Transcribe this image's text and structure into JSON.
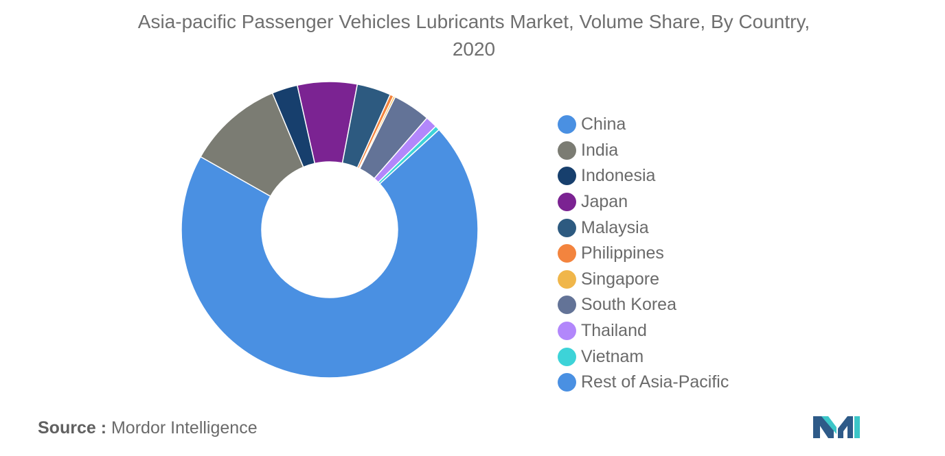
{
  "chart_data": {
    "type": "pie",
    "variant": "donut",
    "title": "Asia-pacific Passenger Vehicles Lubricants Market, Volume Share, By Country, 2020",
    "legend_position": "right",
    "start_slice": "India",
    "slices": [
      {
        "label": "India",
        "value": 10.5,
        "color": "#7b7c73"
      },
      {
        "label": "Indonesia",
        "value": 2.8,
        "color": "#173f6d"
      },
      {
        "label": "Japan",
        "value": 6.5,
        "color": "#7b2392"
      },
      {
        "label": "Malaysia",
        "value": 3.7,
        "color": "#2d5a80"
      },
      {
        "label": "Philippines",
        "value": 0.4,
        "color": "#f3843e"
      },
      {
        "label": "Singapore",
        "value": 0.2,
        "color": "#f0b64a"
      },
      {
        "label": "South Korea",
        "value": 4.1,
        "color": "#637397"
      },
      {
        "label": "Thailand",
        "value": 1.3,
        "color": "#b287fb"
      },
      {
        "label": "Vietnam",
        "value": 0.5,
        "color": "#3dd3d8"
      },
      {
        "label": "Rest of Asia-Pacific",
        "value": 70.0,
        "color": "#4a90e2"
      },
      {
        "label": "China",
        "value": 0.0,
        "color": "#4a90e2"
      }
    ],
    "legend": [
      {
        "label": "China",
        "color": "#4a90e2"
      },
      {
        "label": "India",
        "color": "#7b7c73"
      },
      {
        "label": "Indonesia",
        "color": "#173f6d"
      },
      {
        "label": "Japan",
        "color": "#7b2392"
      },
      {
        "label": "Malaysia",
        "color": "#2d5a80"
      },
      {
        "label": "Philippines",
        "color": "#f3843e"
      },
      {
        "label": "Singapore",
        "color": "#f0b64a"
      },
      {
        "label": "South Korea",
        "color": "#637397"
      },
      {
        "label": "Thailand",
        "color": "#b287fb"
      },
      {
        "label": "Vietnam",
        "color": "#3dd3d8"
      },
      {
        "label": "Rest of Asia-Pacific",
        "color": "#4a90e2"
      }
    ]
  },
  "source": {
    "label": "Source :",
    "text": "Mordor Intelligence"
  },
  "logo": {
    "icon": "mordor-intelligence-logo-icon",
    "colors": [
      "#2e5a88",
      "#3cc6c8"
    ]
  }
}
